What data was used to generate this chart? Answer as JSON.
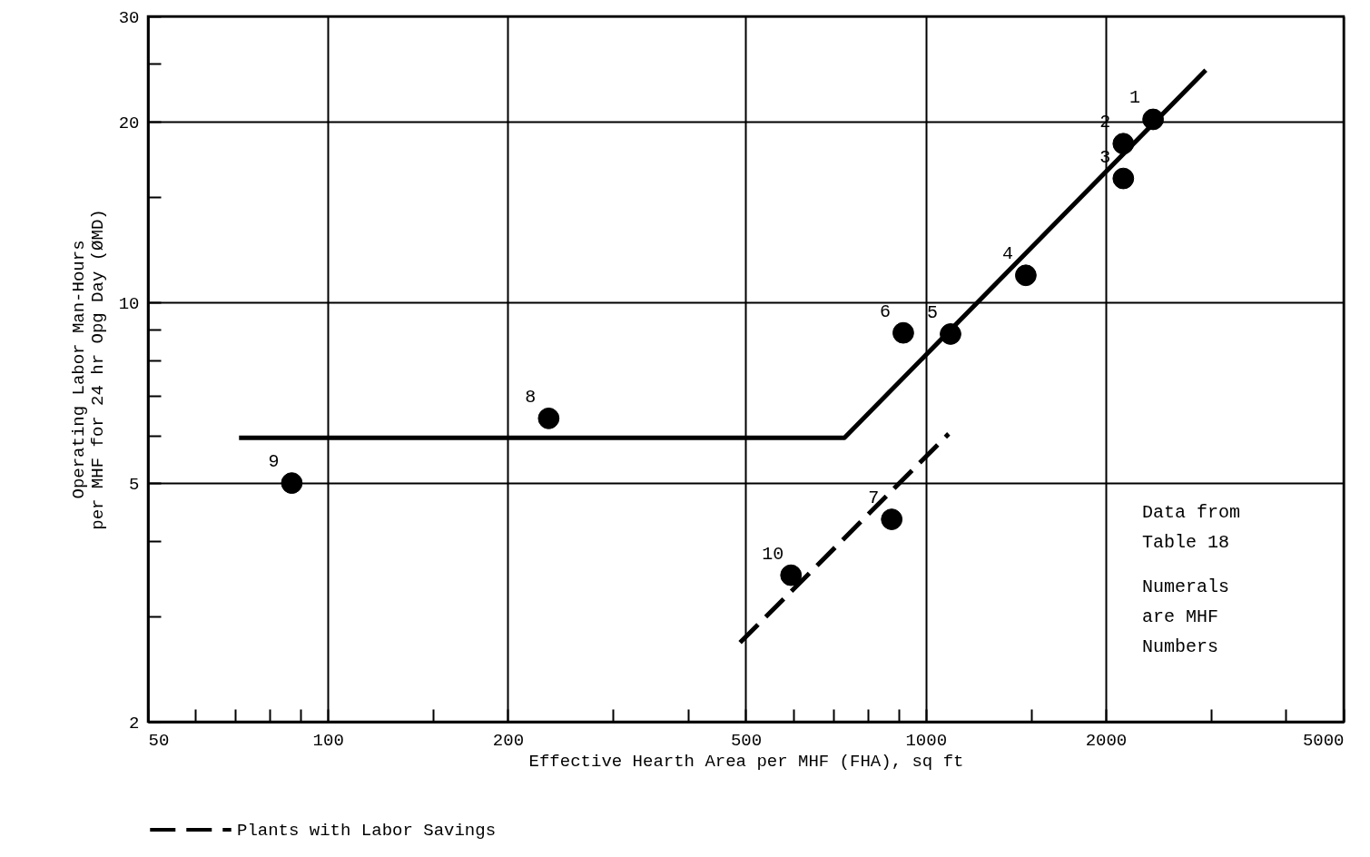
{
  "chart_data": {
    "type": "scatter",
    "xlabel": "Effective Hearth Area per MHF (FHA), sq ft",
    "ylabel": "Operating Labor Man-Hours\nper MHF for 24 hr Opg Day (ØMD)",
    "log": "xy",
    "grid": true,
    "legend": "bottom",
    "xlim": [
      50,
      5000
    ],
    "ylim": [
      2,
      30
    ],
    "xticks": [
      50,
      {
        "value": 60,
        "label": null
      },
      {
        "value": 70,
        "label": null
      },
      {
        "value": 80,
        "label": null
      },
      {
        "value": 90,
        "label": null
      },
      100,
      {
        "value": 150,
        "label": null
      },
      200,
      {
        "value": 300,
        "label": null
      },
      {
        "value": 400,
        "label": null
      },
      500,
      {
        "value": 600,
        "label": null
      },
      {
        "value": 700,
        "label": null
      },
      {
        "value": 800,
        "label": null
      },
      {
        "value": 900,
        "label": null
      },
      1000,
      {
        "value": 1500,
        "label": null
      },
      2000,
      {
        "value": 3000,
        "label": null
      },
      {
        "value": 4000,
        "label": null
      },
      5000
    ],
    "yticks": [
      2,
      {
        "value": 3,
        "label": null
      },
      {
        "value": 4,
        "label": null
      },
      5,
      {
        "value": 6,
        "label": null
      },
      {
        "value": 7,
        "label": null
      },
      {
        "value": 8,
        "label": null
      },
      {
        "value": 9,
        "label": null
      },
      10,
      {
        "value": 15,
        "label": null
      },
      20,
      {
        "value": 25,
        "label": null
      },
      30
    ],
    "series": [
      {
        "type": "line",
        "color": "#000000",
        "line_style": "solid",
        "x": [
          71,
          731,
          2940
        ],
        "values": [
          5.95,
          5.95,
          24.4
        ]
      },
      {
        "type": "line",
        "name": "Plants with Labor Savings",
        "color": "#000000",
        "line_style": "dashed",
        "x": [
          489,
          1092
        ],
        "values": [
          2.71,
          6.04
        ]
      },
      {
        "color": "#000000",
        "marker": "circle",
        "x": [
          2400,
          2140,
          2140,
          1470,
          1100,
          917,
          877,
          234,
          87,
          595
        ],
        "values": [
          20.2,
          18.4,
          16.1,
          11.1,
          8.86,
          8.9,
          4.35,
          6.41,
          5.0,
          3.51
        ]
      }
    ],
    "annotations": [
      {
        "text": "1",
        "x": 2400,
        "y": 20.2
      },
      {
        "text": "2",
        "x": 2140,
        "y": 18.4
      },
      {
        "text": "3",
        "x": 2140,
        "y": 16.1
      },
      {
        "text": "4",
        "x": 1470,
        "y": 11.1
      },
      {
        "text": "5",
        "x": 1100,
        "y": 8.86
      },
      {
        "text": "6",
        "x": 917,
        "y": 8.9
      },
      {
        "text": "7",
        "x": 877,
        "y": 4.35
      },
      {
        "text": "8",
        "x": 234,
        "y": 6.41
      },
      {
        "text": "9",
        "x": 87,
        "y": 5.0
      },
      {
        "text": "10",
        "x": 595,
        "y": 3.51
      },
      "Data from\nTable 18",
      "Numerals\nare MHF\nNumbers"
    ]
  }
}
